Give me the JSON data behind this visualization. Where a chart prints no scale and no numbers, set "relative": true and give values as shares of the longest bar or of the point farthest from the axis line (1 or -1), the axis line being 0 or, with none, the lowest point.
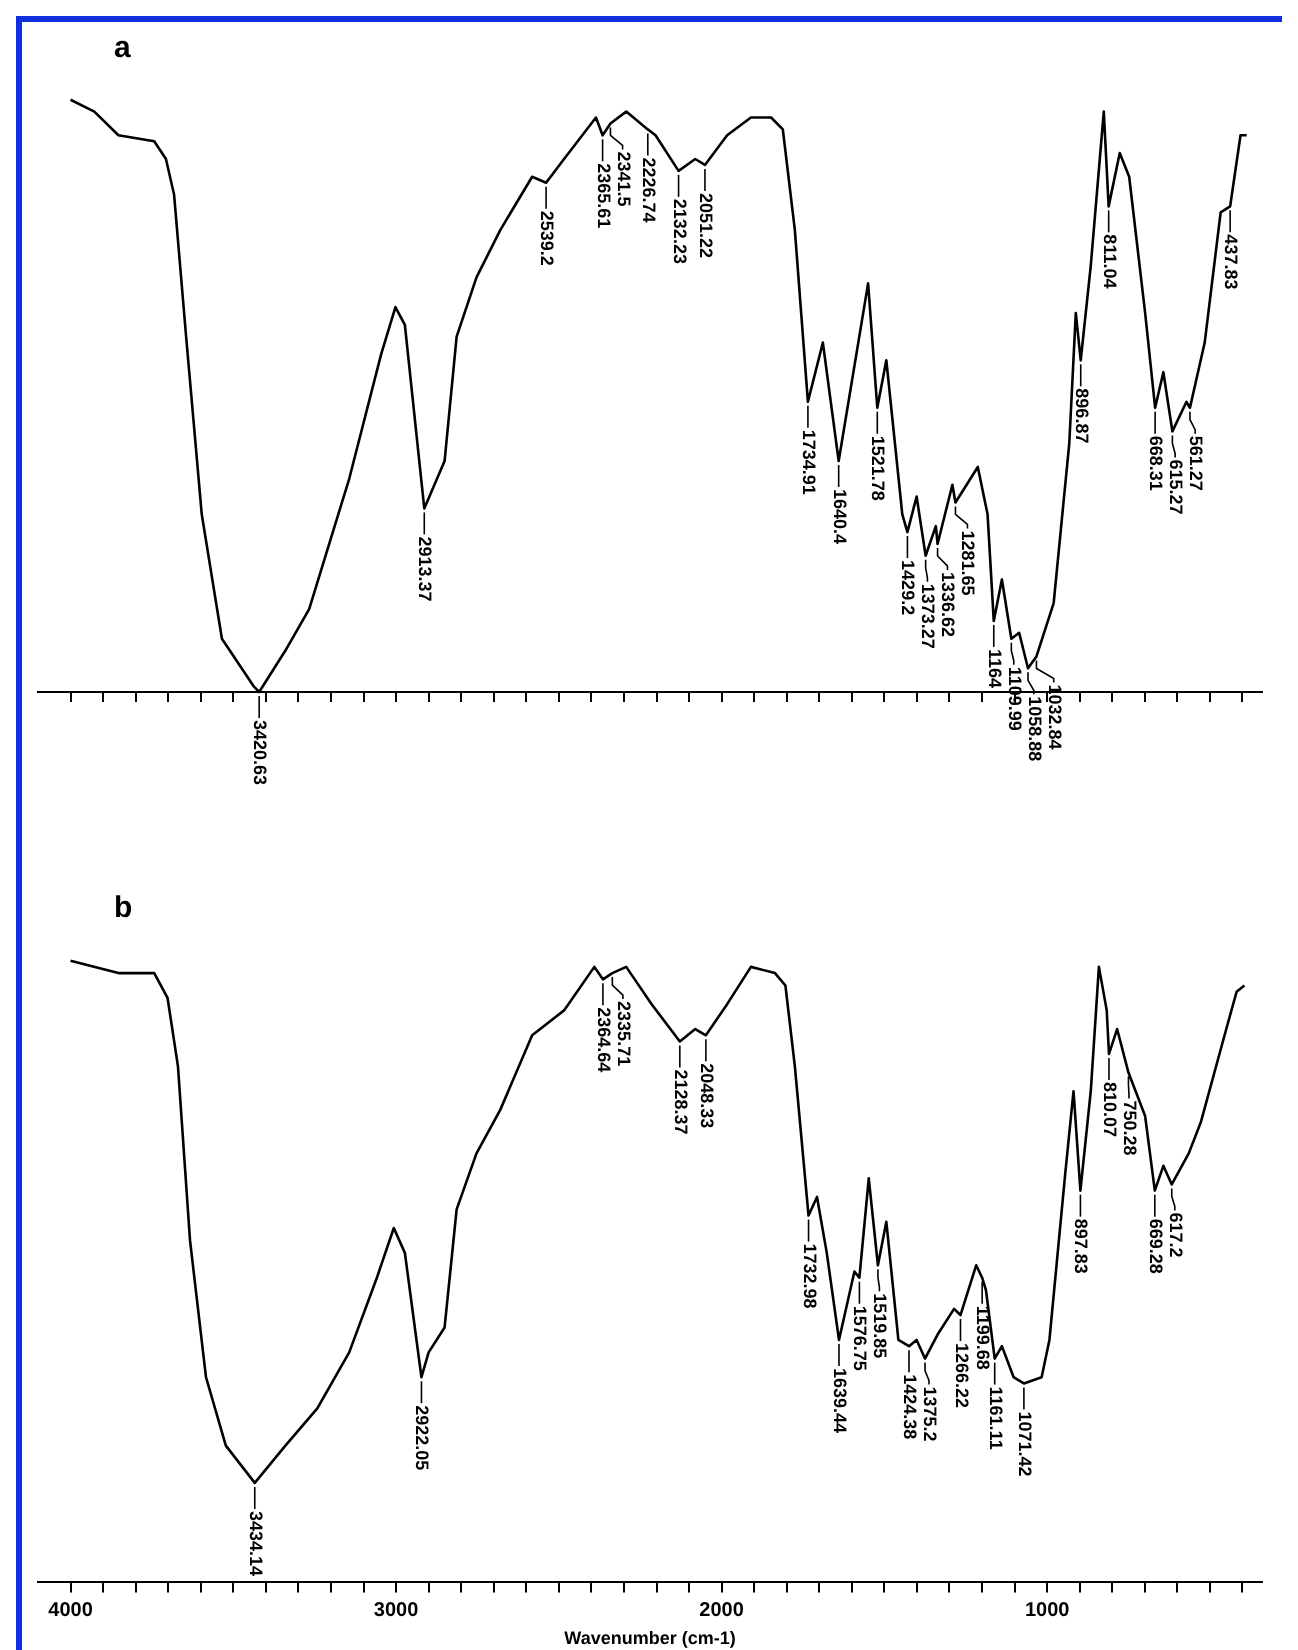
{
  "chart_data": [
    {
      "type": "line",
      "title": "a",
      "relative": true,
      "color": "#000000",
      "line_style": "solid",
      "tick_labels": false,
      "xlim": [
        4100,
        340
      ],
      "xticks": [
        4000,
        {
          "value": 3900,
          "label": null
        },
        {
          "value": 3800,
          "label": null
        },
        {
          "value": 3700,
          "label": null
        },
        {
          "value": 3600,
          "label": null
        },
        {
          "value": 3500,
          "label": null
        },
        {
          "value": 3400,
          "label": null
        },
        {
          "value": 3300,
          "label": null
        },
        {
          "value": 3200,
          "label": null
        },
        {
          "value": 3100,
          "label": null
        },
        3000,
        {
          "value": 2900,
          "label": null
        },
        {
          "value": 2800,
          "label": null
        },
        {
          "value": 2700,
          "label": null
        },
        {
          "value": 2600,
          "label": null
        },
        {
          "value": 2500,
          "label": null
        },
        {
          "value": 2400,
          "label": null
        },
        {
          "value": 2300,
          "label": null
        },
        {
          "value": 2200,
          "label": null
        },
        {
          "value": 2100,
          "label": null
        },
        2000,
        {
          "value": 1900,
          "label": null
        },
        {
          "value": 1800,
          "label": null
        },
        {
          "value": 1700,
          "label": null
        },
        {
          "value": 1600,
          "label": null
        },
        {
          "value": 1500,
          "label": null
        },
        {
          "value": 1400,
          "label": null
        },
        {
          "value": 1300,
          "label": null
        },
        {
          "value": 1200,
          "label": null
        },
        {
          "value": 1100,
          "label": null
        },
        1000,
        {
          "value": 900,
          "label": null
        },
        {
          "value": 800,
          "label": null
        },
        {
          "value": 700,
          "label": null
        },
        {
          "value": 600,
          "label": null
        },
        {
          "value": 500,
          "label": null
        },
        {
          "value": 400,
          "label": null
        }
      ],
      "x": [
        4000,
        3927,
        3853,
        3743,
        3707,
        3682,
        3645,
        3597,
        3535,
        3438,
        3420.63,
        3340,
        3267,
        3144,
        3046,
        3002,
        2973,
        2913.37,
        2851,
        2814,
        2753,
        2680,
        2582,
        2539.2,
        2484,
        2386,
        2365.61,
        2341.5,
        2293,
        2226.74,
        2203,
        2132.23,
        2081,
        2051.22,
        1983,
        1910,
        1848,
        1812,
        1775,
        1734.91,
        1689,
        1640.4,
        1550,
        1521.78,
        1494,
        1445,
        1429.2,
        1401,
        1373.27,
        1342,
        1336.62,
        1291,
        1281.65,
        1213,
        1183,
        1164,
        1139,
        1109.99,
        1086,
        1058.88,
        1032.84,
        980,
        932,
        912,
        896.87,
        866,
        826,
        811.04,
        777,
        748,
        699,
        668.31,
        643,
        615.27,
        572,
        561.27,
        516,
        467,
        437.83,
        406,
        387
      ],
      "values": [
        1.0,
        0.98,
        0.94,
        0.93,
        0.9,
        0.84,
        0.6,
        0.3,
        0.09,
        0.01,
        0.0,
        0.07,
        0.14,
        0.36,
        0.57,
        0.65,
        0.62,
        0.31,
        0.39,
        0.6,
        0.7,
        0.78,
        0.87,
        0.86,
        0.9,
        0.97,
        0.94,
        0.96,
        0.98,
        0.95,
        0.94,
        0.88,
        0.9,
        0.89,
        0.94,
        0.97,
        0.97,
        0.95,
        0.78,
        0.49,
        0.59,
        0.39,
        0.69,
        0.48,
        0.56,
        0.3,
        0.27,
        0.33,
        0.23,
        0.28,
        0.25,
        0.35,
        0.32,
        0.38,
        0.3,
        0.12,
        0.19,
        0.09,
        0.1,
        0.04,
        0.06,
        0.15,
        0.42,
        0.64,
        0.56,
        0.72,
        0.98,
        0.82,
        0.91,
        0.87,
        0.64,
        0.48,
        0.54,
        0.44,
        0.49,
        0.48,
        0.59,
        0.81,
        0.82,
        0.94,
        0.94
      ],
      "annotations": [
        {
          "text": "3420.63",
          "x": 3420.63,
          "y": 0.0
        },
        {
          "text": "2913.37",
          "x": 2913.37,
          "y": 0.31
        },
        {
          "text": "2539.2",
          "x": 2539.2,
          "y": 0.86
        },
        {
          "text": "2365.61",
          "x": 2365.61,
          "y": 0.94
        },
        {
          "text": "2341.5",
          "x": 2341.5,
          "y": 0.96
        },
        {
          "text": "2226.74",
          "x": 2226.74,
          "y": 0.95
        },
        {
          "text": "2132.23",
          "x": 2132.23,
          "y": 0.88
        },
        {
          "text": "2051.22",
          "x": 2051.22,
          "y": 0.89
        },
        {
          "text": "1734.91",
          "x": 1734.91,
          "y": 0.49
        },
        {
          "text": "1640.4",
          "x": 1640.4,
          "y": 0.39
        },
        {
          "text": "1521.78",
          "x": 1521.78,
          "y": 0.48
        },
        {
          "text": "1429.2",
          "x": 1429.2,
          "y": 0.27
        },
        {
          "text": "1373.27",
          "x": 1373.27,
          "y": 0.23
        },
        {
          "text": "1336.62",
          "x": 1336.62,
          "y": 0.25
        },
        {
          "text": "1281.65",
          "x": 1281.65,
          "y": 0.32
        },
        {
          "text": "1164",
          "x": 1164,
          "y": 0.12
        },
        {
          "text": "1109.99",
          "x": 1109.99,
          "y": 0.09
        },
        {
          "text": "1058.88",
          "x": 1058.88,
          "y": 0.04
        },
        {
          "text": "1032.84",
          "x": 1032.84,
          "y": 0.06
        },
        {
          "text": "896.87",
          "x": 896.87,
          "y": 0.56
        },
        {
          "text": "811.04",
          "x": 811.04,
          "y": 0.82
        },
        {
          "text": "668.31",
          "x": 668.31,
          "y": 0.48
        },
        {
          "text": "615.27",
          "x": 615.27,
          "y": 0.44
        },
        {
          "text": "561.27",
          "x": 561.27,
          "y": 0.48
        },
        {
          "text": "437.83",
          "x": 437.83,
          "y": 0.82
        }
      ]
    },
    {
      "type": "line",
      "title": "b",
      "relative": true,
      "color": "#000000",
      "line_style": "solid",
      "xlabel": "Wavenumber (cm-1)",
      "xlim": [
        4100,
        340
      ],
      "xticks": [
        4000,
        {
          "value": 3900,
          "label": null
        },
        {
          "value": 3800,
          "label": null
        },
        {
          "value": 3700,
          "label": null
        },
        {
          "value": 3600,
          "label": null
        },
        {
          "value": 3500,
          "label": null
        },
        {
          "value": 3400,
          "label": null
        },
        {
          "value": 3300,
          "label": null
        },
        {
          "value": 3200,
          "label": null
        },
        {
          "value": 3100,
          "label": null
        },
        3000,
        {
          "value": 2900,
          "label": null
        },
        {
          "value": 2800,
          "label": null
        },
        {
          "value": 2700,
          "label": null
        },
        {
          "value": 2600,
          "label": null
        },
        {
          "value": 2500,
          "label": null
        },
        {
          "value": 2400,
          "label": null
        },
        {
          "value": 2300,
          "label": null
        },
        {
          "value": 2200,
          "label": null
        },
        {
          "value": 2100,
          "label": null
        },
        2000,
        {
          "value": 1900,
          "label": null
        },
        {
          "value": 1800,
          "label": null
        },
        {
          "value": 1700,
          "label": null
        },
        {
          "value": 1600,
          "label": null
        },
        {
          "value": 1500,
          "label": null
        },
        {
          "value": 1400,
          "label": null
        },
        {
          "value": 1300,
          "label": null
        },
        {
          "value": 1200,
          "label": null
        },
        {
          "value": 1100,
          "label": null
        },
        1000,
        {
          "value": 900,
          "label": null
        },
        {
          "value": 800,
          "label": null
        },
        {
          "value": 700,
          "label": null
        },
        {
          "value": 600,
          "label": null
        },
        {
          "value": 500,
          "label": null
        },
        {
          "value": 400,
          "label": null
        }
      ],
      "x": [
        4000,
        3853,
        3743,
        3702,
        3670,
        3633,
        3584,
        3523,
        3434.14,
        3340,
        3242,
        3144,
        3059,
        3007,
        2973,
        2922.05,
        2900,
        2851,
        2814,
        2753,
        2680,
        2582,
        2484,
        2391,
        2364.64,
        2335.71,
        2293,
        2215,
        2128.37,
        2081,
        2048.33,
        1983,
        1910,
        1836,
        1804,
        1775,
        1732.98,
        1707,
        1677,
        1639.44,
        1592,
        1576.75,
        1548,
        1519.85,
        1494,
        1457,
        1424.38,
        1401,
        1375.2,
        1335,
        1286,
        1266.22,
        1218,
        1199.68,
        1188,
        1161.11,
        1139,
        1103,
        1071.42,
        1017,
        993,
        944,
        919,
        897.83,
        866,
        841,
        817,
        810.07,
        785,
        750.28,
        699,
        669.28,
        643,
        617.2,
        565,
        528,
        455,
        418,
        394
      ],
      "values": [
        1.0,
        0.98,
        0.98,
        0.94,
        0.83,
        0.55,
        0.33,
        0.22,
        0.16,
        0.22,
        0.28,
        0.37,
        0.49,
        0.57,
        0.53,
        0.33,
        0.37,
        0.41,
        0.6,
        0.69,
        0.76,
        0.88,
        0.92,
        0.99,
        0.97,
        0.98,
        0.99,
        0.93,
        0.87,
        0.89,
        0.88,
        0.93,
        0.99,
        0.98,
        0.96,
        0.83,
        0.59,
        0.62,
        0.53,
        0.39,
        0.5,
        0.49,
        0.65,
        0.51,
        0.58,
        0.39,
        0.38,
        0.39,
        0.36,
        0.4,
        0.44,
        0.43,
        0.51,
        0.49,
        0.47,
        0.36,
        0.38,
        0.33,
        0.32,
        0.33,
        0.39,
        0.66,
        0.79,
        0.63,
        0.79,
        0.99,
        0.92,
        0.85,
        0.89,
        0.82,
        0.75,
        0.63,
        0.67,
        0.64,
        0.69,
        0.74,
        0.88,
        0.95,
        0.96
      ],
      "annotations": [
        {
          "text": "3434.14",
          "x": 3434.14,
          "y": 0.16
        },
        {
          "text": "2922.05",
          "x": 2922.05,
          "y": 0.33
        },
        {
          "text": "2364.64",
          "x": 2364.64,
          "y": 0.97
        },
        {
          "text": "2335.71",
          "x": 2335.71,
          "y": 0.98
        },
        {
          "text": "2128.37",
          "x": 2128.37,
          "y": 0.87
        },
        {
          "text": "2048.33",
          "x": 2048.33,
          "y": 0.88
        },
        {
          "text": "1732.98",
          "x": 1732.98,
          "y": 0.59
        },
        {
          "text": "1639.44",
          "x": 1639.44,
          "y": 0.39
        },
        {
          "text": "1576.75",
          "x": 1576.75,
          "y": 0.49
        },
        {
          "text": "1519.85",
          "x": 1519.85,
          "y": 0.51
        },
        {
          "text": "1424.38",
          "x": 1424.38,
          "y": 0.38
        },
        {
          "text": "1375.2",
          "x": 1375.2,
          "y": 0.36
        },
        {
          "text": "1266.22",
          "x": 1266.22,
          "y": 0.43
        },
        {
          "text": "1199.68",
          "x": 1199.68,
          "y": 0.49
        },
        {
          "text": "1161.11",
          "x": 1161.11,
          "y": 0.36
        },
        {
          "text": "1071.42",
          "x": 1071.42,
          "y": 0.32
        },
        {
          "text": "897.83",
          "x": 897.83,
          "y": 0.63
        },
        {
          "text": "810.07",
          "x": 810.07,
          "y": 0.85
        },
        {
          "text": "750.28",
          "x": 750.28,
          "y": 0.82
        },
        {
          "text": "669.28",
          "x": 669.28,
          "y": 0.63
        },
        {
          "text": "617.2",
          "x": 617.2,
          "y": 0.64
        }
      ]
    }
  ]
}
